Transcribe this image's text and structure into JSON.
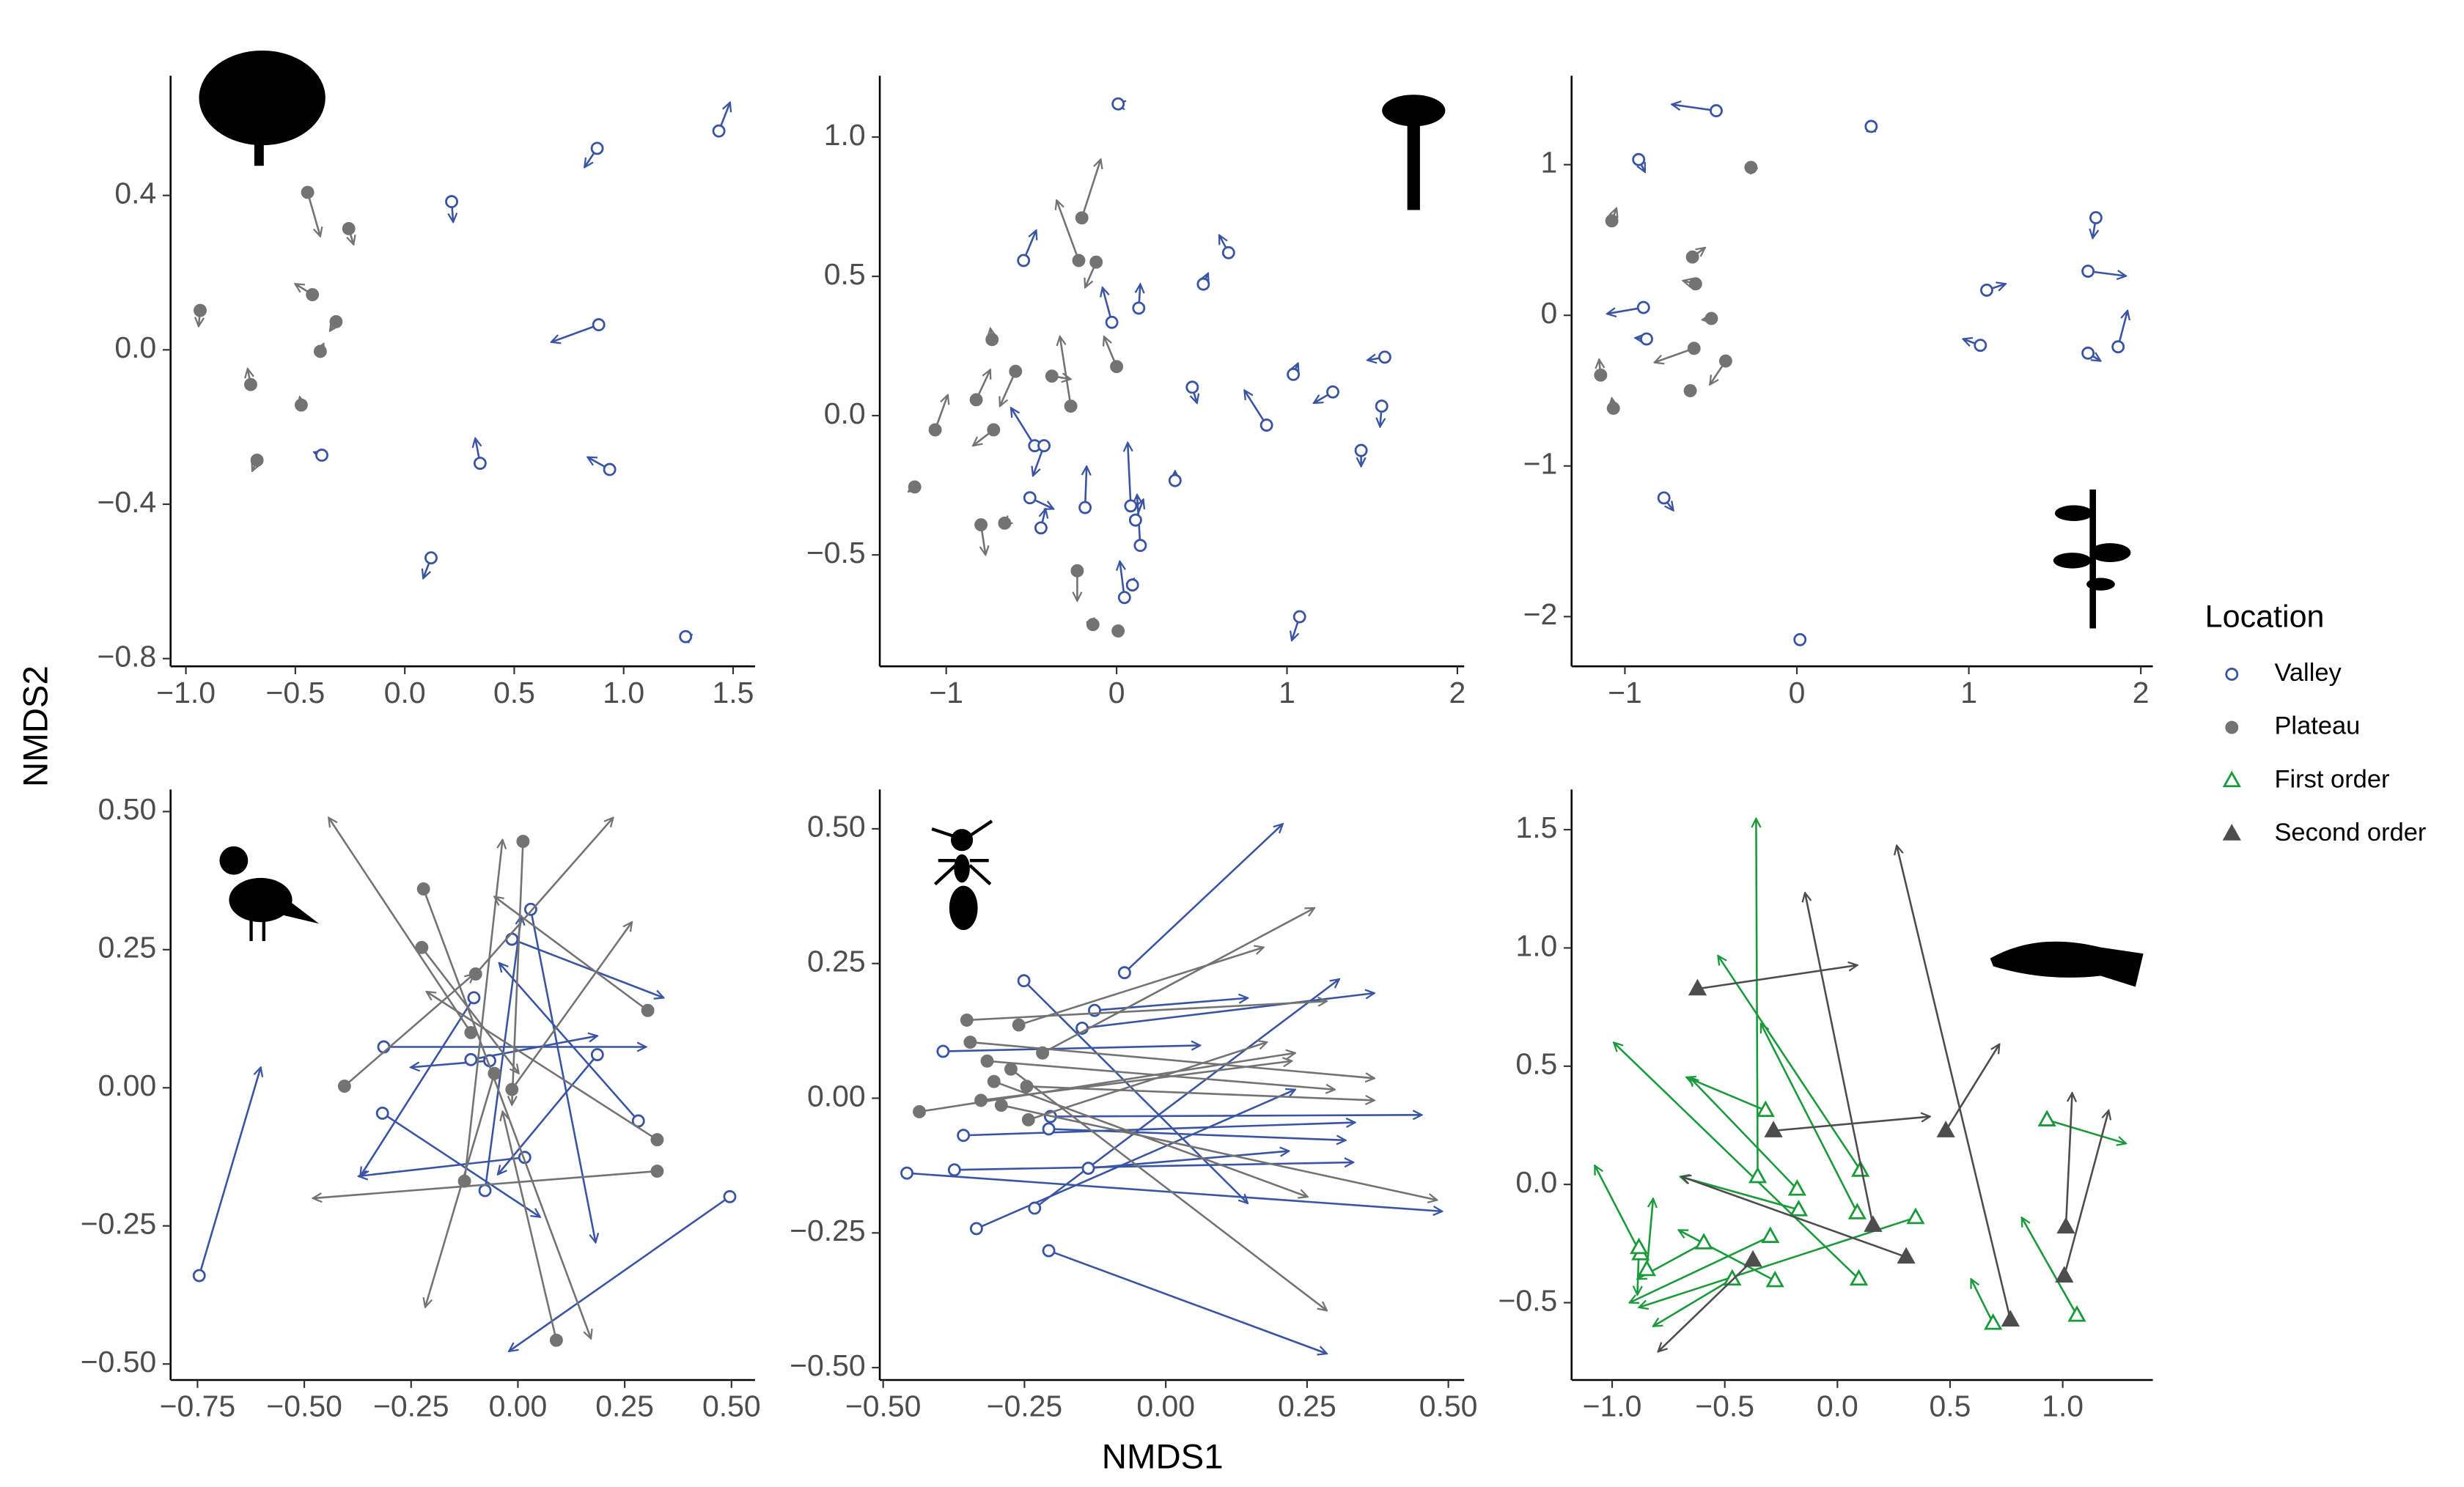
{
  "x_label": "NMDS1",
  "y_label": "NMDS2",
  "legend_title": "Location",
  "chart_data": [
    {
      "type": "scatter",
      "xlim": [
        -1.07,
        1.6
      ],
      "ylim": [
        -0.82,
        0.71
      ],
      "xticks": [
        {
          "value": -1,
          "label": "−1.0"
        },
        {
          "value": -0.5,
          "label": "−0.5"
        },
        {
          "value": 0,
          "label": "0.0"
        },
        0.5,
        {
          "value": 1,
          "label": "1.0"
        },
        1.5
      ],
      "yticks": [
        {
          "value": -0.8,
          "label": "−0.8"
        },
        {
          "value": -0.4,
          "label": "−0.4"
        },
        {
          "value": 0,
          "label": "0.0"
        },
        0.4
      ],
      "series": [
        {
          "name": "Valley",
          "color": "#3a54a4",
          "marker": "open-circle",
          "x": [
            1.435,
            0.879,
            0.214,
            0.886,
            -0.379,
            0.344,
            0.936,
            0.12,
            1.283
          ],
          "y": [
            0.567,
            0.522,
            0.384,
            0.065,
            -0.273,
            -0.294,
            -0.31,
            -0.539,
            -0.743
          ],
          "x_end": [
            1.486,
            0.821,
            0.221,
            0.669,
            -0.415,
            0.322,
            0.835,
            0.084,
            1.27
          ],
          "y_end": [
            0.641,
            0.473,
            0.331,
            0.02,
            -0.265,
            -0.229,
            -0.278,
            -0.592,
            -0.74
          ]
        },
        {
          "name": "Plateau",
          "color": "#737373",
          "marker": "circle",
          "x": [
            -0.444,
            -0.256,
            -0.422,
            -0.314,
            -0.386,
            -0.935,
            -0.704,
            -0.473,
            -0.675
          ],
          "y": [
            0.408,
            0.314,
            0.143,
            0.073,
            -0.004,
            0.102,
            -0.09,
            -0.143,
            -0.286
          ],
          "x_end": [
            -0.386,
            -0.234,
            -0.501,
            -0.342,
            -0.371,
            -0.942,
            -0.718,
            -0.48,
            -0.697
          ],
          "y_end": [
            0.294,
            0.273,
            0.171,
            0.049,
            0.016,
            0.061,
            -0.049,
            -0.122,
            -0.314
          ]
        }
      ]
    },
    {
      "type": "scatter",
      "xlim": [
        -1.39,
        2.04
      ],
      "ylim": [
        -0.9,
        1.22
      ],
      "xticks": [
        {
          "value": -1,
          "label": "−1"
        },
        0,
        1,
        2
      ],
      "yticks": [
        {
          "value": -0.5,
          "label": "−0.5"
        },
        {
          "value": 0,
          "label": "0.0"
        },
        0.5,
        {
          "value": 1,
          "label": "1.0"
        }
      ],
      "series": [
        {
          "name": "Valley",
          "color": "#3a54a4",
          "marker": "open-circle",
          "x": [
            0.009,
            -0.546,
            0.657,
            0.509,
            -0.028,
            0.13,
            0.444,
            0.88,
            1.037,
            1.269,
            1.574,
            1.556,
            1.435,
            -0.481,
            -0.426,
            -0.185,
            -0.509,
            -0.444,
            0.083,
            0.111,
            0.139,
            0.093,
            0.046,
            0.343,
            1.074
          ],
          "y": [
            1.119,
            0.557,
            0.585,
            0.472,
            0.335,
            0.386,
            0.102,
            -0.034,
            0.148,
            0.085,
            0.21,
            0.034,
            -0.125,
            -0.108,
            -0.108,
            -0.33,
            -0.295,
            -0.403,
            -0.324,
            -0.375,
            -0.466,
            -0.608,
            -0.653,
            -0.233,
            -0.722
          ],
          "x_end": [
            0.0,
            -0.472,
            0.602,
            0.537,
            -0.083,
            0.139,
            0.472,
            0.75,
            1.065,
            1.157,
            1.472,
            1.546,
            1.435,
            -0.62,
            -0.491,
            -0.176,
            -0.37,
            -0.417,
            0.065,
            0.157,
            0.12,
            0.102,
            0.019,
            0.343,
            1.028
          ],
          "y_end": [
            1.12,
            0.665,
            0.648,
            0.511,
            0.46,
            0.472,
            0.045,
            0.091,
            0.188,
            0.045,
            0.199,
            -0.04,
            -0.182,
            0.028,
            -0.216,
            -0.182,
            -0.335,
            -0.335,
            -0.097,
            -0.301,
            -0.284,
            -0.585,
            -0.523,
            -0.199,
            -0.807
          ]
        },
        {
          "name": "Plateau",
          "color": "#737373",
          "marker": "circle",
          "x": [
            -0.204,
            -0.222,
            -0.12,
            0,
            -0.269,
            -0.593,
            -0.824,
            -0.722,
            -0.796,
            -0.231,
            -0.38,
            -1.185,
            -1.065,
            -0.139,
            0.009,
            -0.657,
            -0.731
          ],
          "y": [
            0.71,
            0.557,
            0.551,
            0.176,
            0.034,
            0.159,
            0.057,
            -0.051,
            -0.392,
            -0.557,
            0.142,
            -0.256,
            -0.051,
            -0.75,
            -0.773,
            -0.386,
            0.273
          ],
          "x_end": [
            -0.093,
            -0.352,
            -0.185,
            -0.074,
            -0.333,
            -0.685,
            -0.741,
            -0.843,
            -0.769,
            -0.231,
            -0.269,
            -1.222,
            -0.991,
            -0.13,
            0.028,
            -0.667,
            -0.741
          ],
          "y_end": [
            0.92,
            0.773,
            0.46,
            0.284,
            0.284,
            0.034,
            0.165,
            -0.108,
            -0.5,
            -0.665,
            0.131,
            -0.273,
            0.074,
            -0.76,
            -0.76,
            -0.39,
            0.313
          ]
        }
      ]
    },
    {
      "type": "scatter",
      "xlim": [
        -1.31,
        2.07
      ],
      "ylim": [
        -2.33,
        1.59
      ],
      "xticks": [
        {
          "value": -1,
          "label": "−1"
        },
        0,
        1,
        2
      ],
      "yticks": [
        {
          "value": -2,
          "label": "−2"
        },
        {
          "value": -1,
          "label": "−1"
        },
        0,
        1
      ],
      "series": [
        {
          "name": "Valley",
          "color": "#3a54a4",
          "marker": "open-circle",
          "x": [
            -0.469,
            0.432,
            -0.92,
            1.739,
            1.693,
            1.104,
            1.868,
            1.693,
            1.067,
            -0.892,
            -0.874,
            -0.773,
            0.018
          ],
          "y": [
            1.358,
            1.254,
            1.034,
            0.648,
            0.293,
            0.167,
            -0.209,
            -0.251,
            -0.199,
            0.052,
            -0.157,
            -1.212,
            -2.153
          ],
          "x_end": [
            -0.727,
            0.432,
            -0.883,
            1.72,
            1.914,
            1.214,
            1.923,
            1.766,
            0.966,
            -1.104,
            -0.94,
            -0.718,
            -0.01
          ],
          "y_end": [
            1.4,
            1.275,
            0.951,
            0.512,
            0.261,
            0.209,
            0.031,
            -0.303,
            -0.157,
            0.01,
            -0.15,
            -1.296,
            -2.14
          ]
        },
        {
          "name": "Plateau",
          "color": "#737373",
          "marker": "circle",
          "x": [
            -1.076,
            -0.607,
            -0.589,
            -0.497,
            -0.598,
            -1.141,
            -1.067,
            -0.414,
            -0.267,
            -0.62
          ],
          "y": [
            0.627,
            0.387,
            0.209,
            -0.021,
            -0.219,
            -0.397,
            -0.617,
            -0.303,
            0.982,
            -0.5
          ],
          "x_end": [
            -1.049,
            -0.534,
            -0.662,
            -0.55,
            -0.828,
            -1.15,
            -1.076,
            -0.506,
            -0.28,
            -0.6
          ],
          "y_end": [
            0.711,
            0.449,
            0.23,
            -0.03,
            -0.313,
            -0.293,
            -0.55,
            -0.46,
            1.0,
            -0.47
          ]
        }
      ]
    },
    {
      "type": "scatter",
      "xlim": [
        -0.813,
        0.555
      ],
      "ylim": [
        -0.529,
        0.54
      ],
      "xticks": [
        {
          "value": -0.75,
          "label": "−0.75"
        },
        {
          "value": -0.5,
          "label": "−0.50"
        },
        {
          "value": -0.25,
          "label": "−0.25"
        },
        {
          "value": 0,
          "label": "0.00"
        },
        0.25,
        {
          "value": 0.5,
          "label": "0.50"
        }
      ],
      "yticks": [
        {
          "value": -0.5,
          "label": "−0.50"
        },
        {
          "value": -0.25,
          "label": "−0.25"
        },
        {
          "value": 0,
          "label": "0.00"
        },
        0.25,
        {
          "value": 0.5,
          "label": "0.50"
        }
      ],
      "series": [
        {
          "name": "Valley",
          "color": "#3a54a4",
          "marker": "open-circle",
          "x": [
            -0.746,
            -0.314,
            -0.317,
            -0.014,
            0.03,
            0.186,
            0.282,
            -0.103,
            0.496,
            0.016,
            -0.066,
            -0.11,
            -0.077
          ],
          "y": [
            -0.34,
            0.074,
            -0.046,
            0.269,
            0.323,
            0.06,
            -0.06,
            0.163,
            -0.197,
            -0.126,
            0.049,
            0.051,
            -0.186
          ],
          "x_end": [
            -0.602,
            0.3,
            0.052,
            0.341,
            0.182,
            -0.047,
            -0.044,
            -0.369,
            -0.021,
            -0.373,
            -0.251,
            0.186,
            0.008
          ],
          "y_end": [
            0.037,
            0.074,
            -0.234,
            0.163,
            -0.28,
            -0.157,
            0.226,
            -0.16,
            -0.477,
            -0.16,
            0.037,
            0.094,
            0.311
          ]
        },
        {
          "name": "Plateau",
          "color": "#737373",
          "marker": "circle",
          "x": [
            0.012,
            -0.221,
            -0.225,
            -0.099,
            -0.11,
            -0.406,
            -0.125,
            0.304,
            0.326,
            0.326,
            0.09,
            -0.055,
            -0.014
          ],
          "y": [
            0.446,
            0.36,
            0.254,
            0.206,
            0.1,
            0.003,
            -0.169,
            0.14,
            -0.094,
            -0.151,
            -0.457,
            0.026,
            -0.003
          ],
          "x_end": [
            -0.014,
            0.171,
            0.002,
            0.223,
            -0.443,
            -0.103,
            -0.036,
            -0.055,
            -0.214,
            -0.48,
            -0.036,
            -0.217,
            0.267
          ],
          "y_end": [
            -0.031,
            -0.454,
            0.026,
            0.489,
            0.489,
            0.206,
            0.449,
            0.346,
            0.174,
            -0.2,
            -0.043,
            -0.397,
            0.3
          ]
        }
      ]
    },
    {
      "type": "scatter",
      "xlim": [
        -0.506,
        0.528
      ],
      "ylim": [
        -0.523,
        0.573
      ],
      "xticks": [
        {
          "value": -0.5,
          "label": "−0.50"
        },
        {
          "value": -0.25,
          "label": "−0.25"
        },
        {
          "value": 0,
          "label": "0.00"
        },
        0.25,
        {
          "value": 0.5,
          "label": "0.50"
        }
      ],
      "yticks": [
        {
          "value": -0.5,
          "label": "−0.50"
        },
        {
          "value": -0.25,
          "label": "−0.25"
        },
        {
          "value": 0,
          "label": "0.00"
        },
        0.25,
        {
          "value": 0.5,
          "label": "0.50"
        }
      ],
      "series": [
        {
          "name": "Valley",
          "color": "#3a54a4",
          "marker": "open-circle",
          "x": [
            -0.458,
            -0.374,
            -0.358,
            -0.335,
            -0.251,
            -0.232,
            -0.207,
            -0.207,
            -0.148,
            -0.126,
            -0.073,
            -0.137,
            -0.394,
            -0.204
          ],
          "y": [
            -0.139,
            -0.133,
            -0.069,
            -0.242,
            0.218,
            -0.204,
            -0.283,
            -0.057,
            0.13,
            0.163,
            0.233,
            -0.13,
            0.087,
            -0.034
          ],
          "x_end": [
            0.489,
            0.332,
            0.335,
            0.229,
            0.145,
            0.307,
            0.285,
            0.318,
            0.369,
            0.145,
            0.207,
            0.218,
            0.061,
            0.453
          ],
          "y_end": [
            -0.21,
            -0.119,
            -0.045,
            0.016,
            -0.195,
            0.221,
            -0.474,
            -0.078,
            0.195,
            0.186,
            0.509,
            -0.098,
            0.098,
            -0.031
          ]
        },
        {
          "name": "Plateau",
          "color": "#737373",
          "marker": "circle",
          "x": [
            -0.352,
            -0.346,
            -0.316,
            -0.304,
            -0.291,
            -0.274,
            -0.26,
            -0.243,
            -0.218,
            -0.436,
            -0.246,
            -0.327
          ],
          "y": [
            0.145,
            0.104,
            0.069,
            0.031,
            -0.013,
            0.054,
            0.136,
            -0.04,
            0.084,
            -0.025,
            0.022,
            -0.004
          ],
          "x_end": [
            0.285,
            0.369,
            0.299,
            0.251,
            0.48,
            0.285,
            0.173,
            0.179,
            0.263,
            0.229,
            0.369,
            0.223
          ],
          "y_end": [
            0.18,
            0.037,
            0.016,
            -0.183,
            -0.189,
            -0.394,
            0.28,
            0.104,
            0.353,
            0.084,
            -0.004,
            0.069
          ]
        }
      ]
    },
    {
      "type": "scatter",
      "xlim": [
        -1.18,
        1.4
      ],
      "ylim": [
        -0.827,
        1.67
      ],
      "xticks": [
        {
          "value": -1,
          "label": "−1.0"
        },
        {
          "value": -0.5,
          "label": "−0.5"
        },
        {
          "value": 0,
          "label": "0.0"
        },
        0.5,
        {
          "value": 1,
          "label": "1.0"
        }
      ],
      "yticks": [
        {
          "value": -0.5,
          "label": "−0.5"
        },
        {
          "value": 0,
          "label": "0.0"
        },
        0.5,
        {
          "value": 1,
          "label": "1.0"
        },
        1.5
      ],
      "series": [
        {
          "name": "First order",
          "color": "#1a9a3a",
          "marker": "open-triangle",
          "x": [
            -0.319,
            -0.354,
            -0.298,
            -0.179,
            -0.172,
            0.088,
            0.102,
            0.347,
            0.095,
            -0.277,
            -0.874,
            -0.846,
            -0.881,
            -0.467,
            0.691,
            0.93,
            1.063,
            -0.593
          ],
          "y": [
            0.313,
            0.033,
            -0.22,
            -0.02,
            -0.107,
            -0.12,
            0.06,
            -0.14,
            -0.4,
            -0.407,
            -0.293,
            -0.36,
            -0.267,
            -0.4,
            -0.587,
            0.273,
            -0.553,
            -0.247
          ],
          "x_end": [
            -0.67,
            -0.361,
            -0.923,
            -0.656,
            -0.698,
            -0.34,
            -0.53,
            -0.881,
            -0.993,
            -0.705,
            -1.077,
            -0.818,
            -0.888,
            -0.818,
            0.593,
            1.281,
            0.818,
            -0.888
          ],
          "y_end": [
            0.453,
            1.547,
            -0.5,
            0.453,
            0.033,
            0.68,
            0.967,
            -0.52,
            0.6,
            -0.193,
            0.08,
            -0.06,
            -0.467,
            -0.6,
            -0.4,
            0.173,
            -0.14,
            -0.4
          ]
        },
        {
          "name": "Second order",
          "color": "#4d4d4d",
          "marker": "triangle",
          "x": [
            -0.621,
            -0.284,
            0.481,
            0.158,
            0.305,
            0.768,
            -0.375,
            1.014,
            1.007
          ],
          "y": [
            0.827,
            0.227,
            0.227,
            -0.173,
            -0.307,
            -0.573,
            -0.32,
            -0.18,
            -0.387
          ],
          "x_end": [
            0.088,
            0.411,
            0.719,
            -0.144,
            -0.691,
            0.263,
            -0.796,
            1.042,
            1.204
          ],
          "y_end": [
            0.927,
            0.287,
            0.593,
            1.233,
            0.033,
            1.433,
            -0.707,
            0.387,
            0.313
          ]
        }
      ]
    }
  ]
}
